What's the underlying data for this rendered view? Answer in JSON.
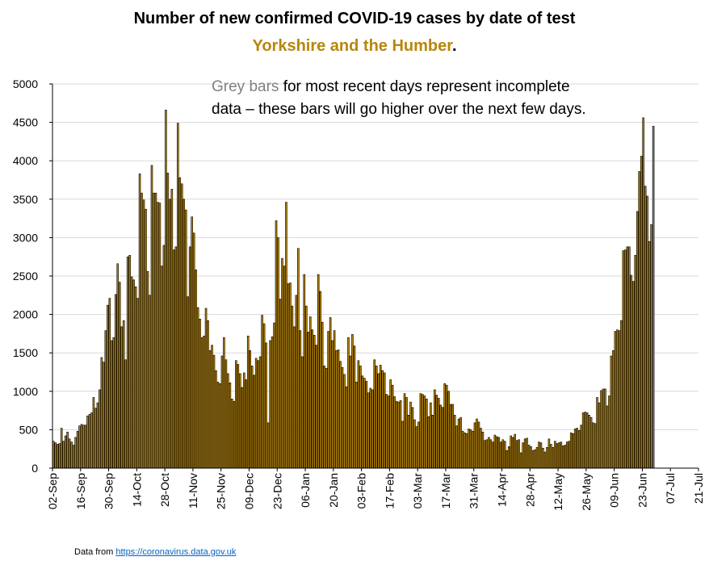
{
  "title": {
    "line1": "Number of new confirmed COVID-19 cases by date of test",
    "region": "Yorkshire and the Humber",
    "period": "."
  },
  "note": {
    "grey_bars": "Grey bars",
    "rest_line1": " for most recent days represent incomplete",
    "line2": "data – these bars will go higher over the next few days."
  },
  "source": {
    "prefix": "Data from ",
    "link": "https://coronavirus.data.gov.uk"
  },
  "colors": {
    "complete_bar": "#b8860b",
    "incomplete_bar": "#808080",
    "bar_outline": "#000000",
    "region_text": "#b8860b",
    "note_grey": "#808080",
    "gridline": "#d9d9d9"
  },
  "chart_data": {
    "type": "bar",
    "grid": "horizontal",
    "ylim": [
      0,
      5000
    ],
    "yticks": [
      "0",
      "500",
      "1000",
      "1500",
      "2000",
      "2500",
      "3000",
      "3500",
      "4000",
      "4500",
      "5000"
    ],
    "xtick_labels": [
      "02-Sep",
      "16-Sep",
      "30-Sep",
      "14-Oct",
      "28-Oct",
      "11-Nov",
      "25-Nov",
      "09-Dec",
      "23-Dec",
      "06-Jan",
      "20-Jan",
      "03-Feb",
      "17-Feb",
      "03-Mar",
      "17-Mar",
      "31-Mar",
      "14-Apr",
      "28-Apr",
      "12-May",
      "26-May",
      "09-Jun",
      "23-Jun",
      "07-Jul",
      "21-Jul"
    ],
    "first_date": "02-Sep",
    "series": [
      {
        "values": [
          350,
          330,
          310,
          320,
          520,
          350,
          420,
          470,
          380,
          340,
          300,
          400,
          480,
          550,
          570,
          560,
          560,
          680,
          700,
          720,
          920,
          780,
          850,
          1020,
          1440,
          1380,
          1790,
          2120,
          2210,
          1660,
          1700,
          2260,
          2660,
          2420,
          1840,
          1920,
          1410,
          2750,
          2770,
          2490,
          2450,
          2360,
          2210,
          3830,
          3580,
          3490,
          3370,
          2560,
          2250,
          3940,
          3580,
          3580,
          3460,
          3450,
          2630,
          2900,
          4660,
          3840,
          3500,
          3630,
          2840,
          2880,
          4490,
          3780,
          3700,
          3500,
          3360,
          2230,
          2880,
          3270,
          3060,
          2580,
          2090,
          1940,
          1700,
          1720,
          2080,
          1920,
          1530,
          1600,
          1470,
          1270,
          1120,
          1100,
          1460,
          1700,
          1410,
          1230,
          1110,
          900,
          870,
          1400,
          1350,
          1230,
          1050,
          1240,
          1150,
          1720,
          1530,
          1330,
          1210,
          1430,
          1400,
          1450,
          1990,
          1880,
          1630,
          590,
          1660,
          1710,
          1890,
          3220,
          3000,
          2200,
          2730,
          2630,
          3460,
          2400,
          2410,
          2110,
          1840,
          2250,
          2860,
          1790,
          1450,
          2520,
          2110,
          1770,
          1970,
          1800,
          1730,
          1600,
          2520,
          2300,
          1900,
          1330,
          1300,
          1780,
          1960,
          1660,
          1790,
          1530,
          1540,
          1390,
          1310,
          1220,
          1060,
          1700,
          1460,
          1740,
          1590,
          1120,
          1400,
          1330,
          1200,
          1170,
          1130,
          980,
          1040,
          1020,
          1410,
          1330,
          1230,
          1340,
          1270,
          1240,
          960,
          940,
          1150,
          1080,
          930,
          870,
          860,
          880,
          610,
          970,
          920,
          690,
          860,
          790,
          630,
          540,
          600,
          970,
          960,
          940,
          900,
          670,
          850,
          690,
          1020,
          950,
          910,
          820,
          790,
          1100,
          1080,
          1000,
          830,
          830,
          690,
          550,
          640,
          660,
          480,
          460,
          450,
          510,
          500,
          480,
          590,
          640,
          600,
          520,
          470,
          360,
          370,
          400,
          370,
          340,
          430,
          410,
          400,
          340,
          370,
          350,
          230,
          280,
          420,
          400,
          440,
          360,
          370,
          200,
          330,
          380,
          390,
          300,
          280,
          230,
          240,
          270,
          340,
          330,
          260,
          210,
          270,
          380,
          310,
          270,
          350,
          320,
          330,
          340,
          290,
          300,
          340,
          350,
          460,
          450,
          510,
          520,
          490,
          560,
          720,
          730,
          720,
          690,
          660,
          590,
          580,
          920,
          850,
          1010,
          1030,
          1030,
          810,
          940,
          1460,
          1530,
          1780,
          1800,
          1790,
          1920,
          2830,
          2840,
          2880,
          2880,
          2510,
          2430,
          2770,
          3340,
          3860,
          4060,
          4560,
          3670,
          3540,
          2950,
          3170
        ],
        "color": "#b8860b"
      },
      {
        "values": [
          4450
        ],
        "color": "#808080"
      }
    ]
  }
}
